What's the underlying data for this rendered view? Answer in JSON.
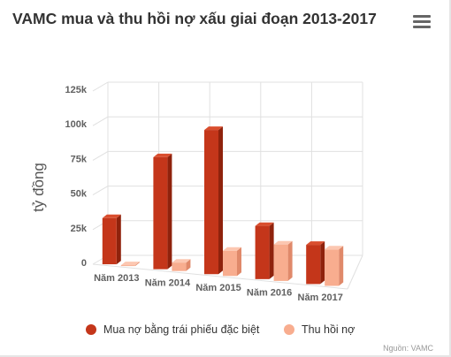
{
  "title": "VAMC mua và thu hồi nợ xấu giai đoạn 2013-2017",
  "credit": "Nguồn: VAMC",
  "menu_icon": "hamburger-menu-icon",
  "colors": {
    "series1_front": "#c4361a",
    "series1_side": "#8f220c",
    "series1_top": "#d94e2e",
    "series2_front": "#f8ad8f",
    "series2_side": "#e0896a",
    "series2_top": "#fcc7b1",
    "grid": "#e0e0e0"
  },
  "chart_data": {
    "type": "bar",
    "style": "3d",
    "title": "VAMC mua và thu hồi nợ xấu giai đoạn 2013-2017",
    "ylabel": "tỷ đồng",
    "xlabel": "",
    "ylim": [
      0,
      125000
    ],
    "yticks": [
      0,
      25000,
      50000,
      75000,
      100000,
      125000
    ],
    "ytick_labels": [
      "0",
      "25k",
      "50k",
      "75k",
      "100k",
      "125k"
    ],
    "grid": true,
    "legend_position": "bottom",
    "categories": [
      "Năm 2013",
      "Năm 2014",
      "Năm 2015",
      "Năm 2016",
      "Năm 2017"
    ],
    "series": [
      {
        "name": "Mua nợ bằng trái phiếu đặc biệt",
        "values": [
          33000,
          80000,
          103000,
          38000,
          28000
        ]
      },
      {
        "name": "Thu hồi nợ",
        "values": [
          0,
          6000,
          18000,
          26000,
          26000
        ]
      }
    ]
  }
}
